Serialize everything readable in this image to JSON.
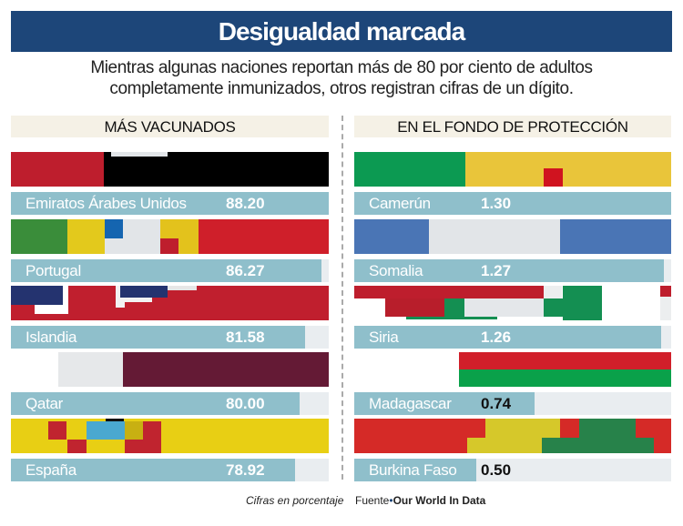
{
  "title": "Desigualdad marcada",
  "subtitle": [
    "Mientras algunas naciones reportan más de 80 por ciento de adultos",
    "completamente inmunizados, otros registran cifras de un dígito."
  ],
  "footer": {
    "note": "Cifras en porcentaje",
    "source_label": "Fuente",
    "source": "Our World In Data"
  },
  "colors": {
    "title_bg": "#1d4679",
    "bar": "#8fbfcb",
    "track": "#e9edf0",
    "header_bg": "#f5f1e6"
  },
  "chart_data": [
    {
      "type": "bar",
      "orientation": "horizontal",
      "title": "MÁS VACUNADOS",
      "categories": [
        "Emiratos Árabes Unidos",
        "Portugal",
        "Islandia",
        "Qatar",
        "España"
      ],
      "values": [
        88.2,
        86.27,
        81.58,
        80.0,
        78.92
      ],
      "labels": [
        "88.20",
        "86.27",
        "81.58",
        "80.00",
        "78.92"
      ],
      "flags": [
        "uae-flag",
        "portugal-flag",
        "iceland-flag",
        "qatar-flag",
        "spain-flag"
      ]
    },
    {
      "type": "bar",
      "orientation": "horizontal",
      "title": "EN EL FONDO DE PROTECCIÓN",
      "categories": [
        "Camerún",
        "Somalia",
        "Siria",
        "Madagascar",
        "Burkina Faso"
      ],
      "values": [
        1.3,
        1.27,
        1.26,
        0.74,
        0.5
      ],
      "labels": [
        "1.30",
        "1.27",
        "1.26",
        "0.74",
        "0.50"
      ],
      "flags": [
        "cameroon-flag",
        "somalia-flag",
        "syria-flag",
        "madagascar-flag",
        "burkina-faso-flag"
      ]
    }
  ]
}
